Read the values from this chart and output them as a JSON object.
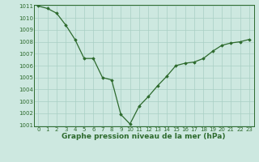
{
  "x": [
    0,
    1,
    2,
    3,
    4,
    5,
    6,
    7,
    8,
    9,
    10,
    11,
    12,
    13,
    14,
    15,
    16,
    17,
    18,
    19,
    20,
    21,
    22,
    23
  ],
  "y": [
    1011.0,
    1010.8,
    1010.4,
    1009.4,
    1008.2,
    1006.6,
    1006.6,
    1005.0,
    1004.8,
    1001.9,
    1001.1,
    1002.6,
    1003.4,
    1004.3,
    1005.1,
    1006.0,
    1006.2,
    1006.3,
    1006.6,
    1007.2,
    1007.7,
    1007.9,
    1008.0,
    1008.2
  ],
  "ylim": [
    1001,
    1011
  ],
  "xlim": [
    -0.5,
    23.5
  ],
  "yticks": [
    1001,
    1002,
    1003,
    1004,
    1005,
    1006,
    1007,
    1008,
    1009,
    1010,
    1011
  ],
  "xticks": [
    0,
    1,
    2,
    3,
    4,
    5,
    6,
    7,
    8,
    9,
    10,
    11,
    12,
    13,
    14,
    15,
    16,
    17,
    18,
    19,
    20,
    21,
    22,
    23
  ],
  "line_color": "#2d6a2d",
  "marker": "D",
  "marker_size": 1.8,
  "bg_color": "#cde8e0",
  "grid_color": "#a8cfc4",
  "xlabel": "Graphe pression niveau de la mer (hPa)",
  "xlabel_fontsize": 6.5,
  "tick_fontsize": 5.0,
  "linewidth": 0.9
}
